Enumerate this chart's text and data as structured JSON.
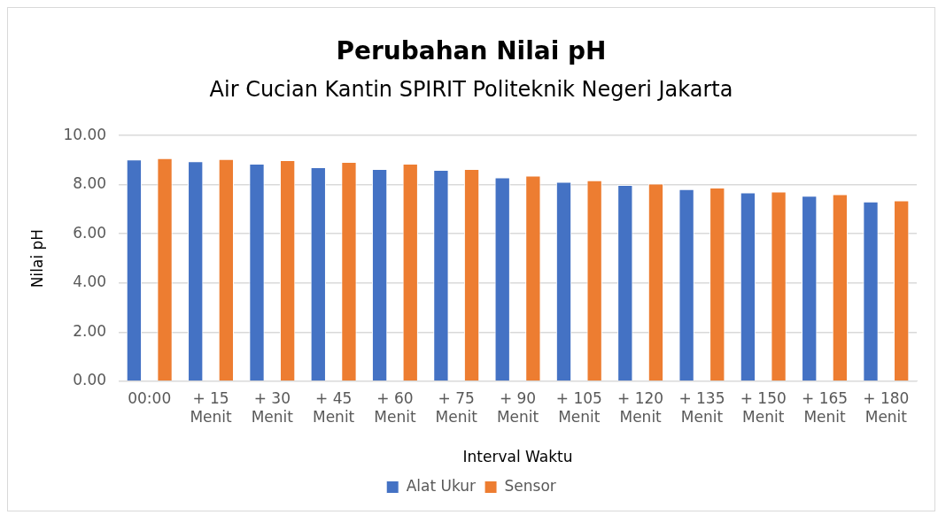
{
  "chart_data": {
    "type": "bar",
    "title": "Perubahan Nilai pH",
    "subtitle": "Air Cucian Kantin SPIRIT Politeknik Negeri Jakarta",
    "xlabel": "Interval Waktu",
    "ylabel": "Nilai pH",
    "categories": [
      "00:00",
      "+ 15 Menit",
      "+ 30 Menit",
      "+ 45 Menit",
      "+ 60 Menit",
      "+ 75 Menit",
      "+ 90 Menit",
      "+ 105 Menit",
      "+ 120 Menit",
      "+ 135 Menit",
      "+ 150 Menit",
      "+ 165 Menit",
      "+ 180 Menit"
    ],
    "series": [
      {
        "name": "Alat Ukur",
        "color": "#4472c4",
        "values": [
          9.03,
          8.95,
          8.85,
          8.71,
          8.64,
          8.6,
          8.3,
          8.12,
          7.99,
          7.82,
          7.68,
          7.55,
          7.31
        ]
      },
      {
        "name": "Sensor",
        "color": "#ed7d31",
        "values": [
          9.08,
          9.04,
          9.0,
          8.93,
          8.85,
          8.64,
          8.37,
          8.18,
          8.04,
          7.88,
          7.72,
          7.61,
          7.36
        ]
      }
    ],
    "ylim": [
      0,
      10
    ],
    "yticks": [
      {
        "value": 0,
        "label": "0.00"
      },
      {
        "value": 2,
        "label": "2.00"
      },
      {
        "value": 4,
        "label": "4.00"
      },
      {
        "value": 6,
        "label": "6.00"
      },
      {
        "value": 8,
        "label": "8.00"
      },
      {
        "value": 10,
        "label": "10.00"
      }
    ],
    "grid": "y",
    "legend": "bottom"
  }
}
